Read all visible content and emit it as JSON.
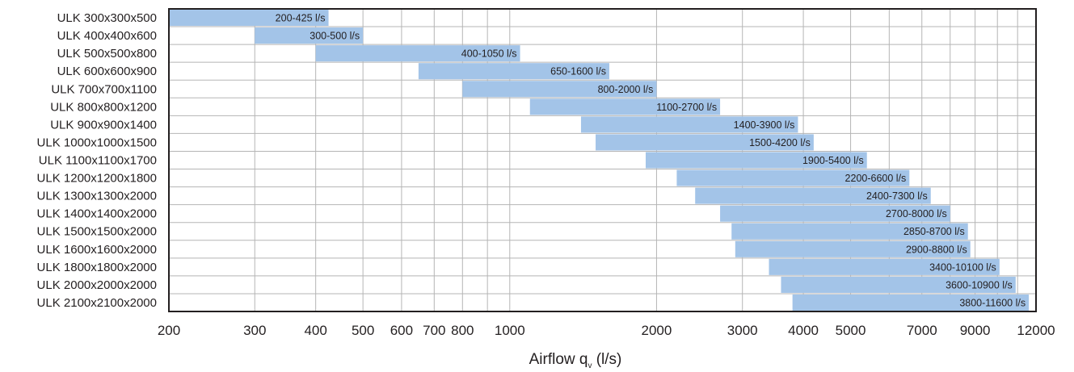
{
  "chart_data": {
    "type": "bar",
    "orientation": "horizontal",
    "x_scale": "log",
    "xlim": [
      200,
      12000
    ],
    "xlabel": {
      "main": "Airflow q",
      "subscript": "v",
      "unit": " (l/s)"
    },
    "grid": true,
    "bar_color": "#a3c4e8",
    "grid_color": "#b5b5b5",
    "frame_color": "#231f20",
    "x_ticks": [
      200,
      300,
      400,
      500,
      600,
      700,
      800,
      1000,
      2000,
      3000,
      4000,
      5000,
      7000,
      9000,
      12000
    ],
    "x_tick_labels": [
      "200",
      "300",
      "400",
      "500",
      "600",
      "700",
      "800",
      "1000",
      "2000",
      "3000",
      "4000",
      "5000",
      "7000",
      "9000",
      "12000"
    ],
    "categories": [
      "ULK 300x300x500",
      "ULK 400x400x600",
      "ULK 500x500x800",
      "ULK 600x600x900",
      "ULK 700x700x1100",
      "ULK 800x800x1200",
      "ULK 900x900x1400",
      "ULK 1000x1000x1500",
      "ULK 1100x1100x1700",
      "ULK 1200x1200x1800",
      "ULK 1300x1300x2000",
      "ULK 1400x1400x2000",
      "ULK 1500x1500x2000",
      "ULK 1600x1600x2000",
      "ULK 1800x1800x2000",
      "ULK 2000x2000x2000",
      "ULK 2100x2100x2000"
    ],
    "ranges": [
      [
        200,
        425
      ],
      [
        300,
        500
      ],
      [
        400,
        1050
      ],
      [
        650,
        1600
      ],
      [
        800,
        2000
      ],
      [
        1100,
        2700
      ],
      [
        1400,
        3900
      ],
      [
        1500,
        4200
      ],
      [
        1900,
        5400
      ],
      [
        2200,
        6600
      ],
      [
        2400,
        7300
      ],
      [
        2700,
        8000
      ],
      [
        2850,
        8700
      ],
      [
        2900,
        8800
      ],
      [
        3400,
        10100
      ],
      [
        3600,
        10900
      ],
      [
        3800,
        11600
      ]
    ],
    "bar_labels": [
      "200-425 l/s",
      "300-500 l/s",
      "400-1050 l/s",
      "650-1600 l/s",
      "800-2000 l/s",
      "1100-2700 l/s",
      "1400-3900 l/s",
      "1500-4200 l/s",
      "1900-5400 l/s",
      "2200-6600 l/s",
      "2400-7300 l/s",
      "2700-8000 l/s",
      "2850-8700 l/s",
      "2900-8800 l/s",
      "3400-10100 l/s",
      "3600-10900 l/s",
      "3800-11600 l/s"
    ]
  }
}
